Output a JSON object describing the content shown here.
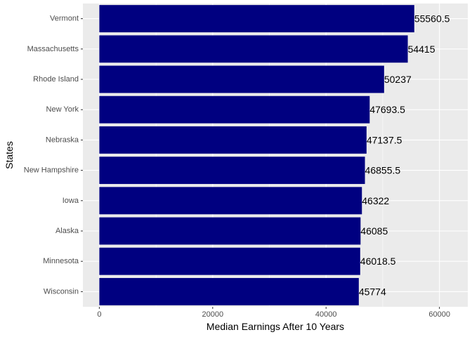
{
  "chart_data": {
    "type": "bar",
    "orientation": "horizontal",
    "title": "",
    "xlabel": "Median Earnings After 10 Years",
    "ylabel": "States",
    "categories": [
      "Vermont",
      "Massachusetts",
      "Rhode Island",
      "New York",
      "Nebraska",
      "New Hampshire",
      "Iowa",
      "Alaska",
      "Minnesota",
      "Wisconsin"
    ],
    "values": [
      55560.5,
      54415,
      50237,
      47693.5,
      47137.5,
      46855.5,
      46322,
      46085,
      46018.5,
      45774
    ],
    "value_labels": [
      "55560.5",
      "54415",
      "50237",
      "47693.5",
      "47137.5",
      "46855.5",
      "46322",
      "46085",
      "46018.5",
      "45774"
    ],
    "xlim": [
      -2900,
      65000
    ],
    "x_ticks": [
      0,
      20000,
      40000,
      60000
    ],
    "x_tick_labels": [
      "0",
      "20000",
      "40000",
      "60000"
    ],
    "grid": true,
    "legend": "none",
    "colors": {
      "bar": "#000080",
      "panel_background": "#EBEBEB",
      "grid_major": "#FFFFFF",
      "text": "#000000",
      "tick_text": "#4D4D4D"
    }
  }
}
